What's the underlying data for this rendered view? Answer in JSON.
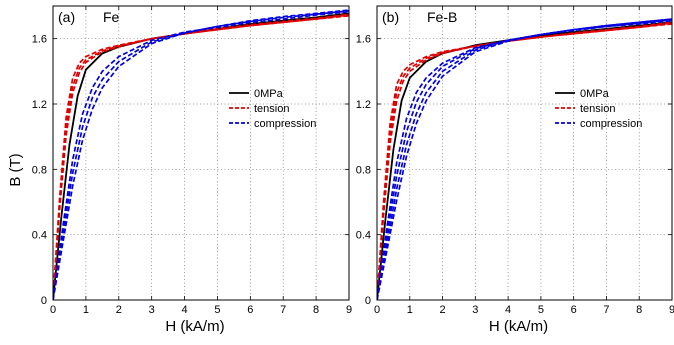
{
  "figure": {
    "ylabel": "B (T)"
  },
  "chart_data": [
    {
      "type": "line",
      "panel_label": "(a)",
      "material": "Fe",
      "xlabel": "H (kA/m)",
      "ylabel": "B (T)",
      "xlim": [
        0,
        9
      ],
      "ylim": [
        0,
        1.8
      ],
      "xticks": [
        0,
        1,
        2,
        3,
        4,
        5,
        6,
        7,
        8,
        9
      ],
      "yticks": [
        0,
        0.4,
        0.8,
        1.2,
        1.6
      ],
      "ytick_labels": [
        "0",
        "0.4",
        "0.8",
        "1.2",
        "1.6"
      ],
      "grid": true,
      "legend_position": "middle-right",
      "legend": [
        {
          "label": "0MPa",
          "color": "#000000",
          "dash": "solid"
        },
        {
          "label": "tension",
          "color": "#e00000",
          "dash": "dashed"
        },
        {
          "label": "compression",
          "color": "#0000e0",
          "dash": "dashed"
        }
      ],
      "series": [
        {
          "group": "0MPa",
          "color": "#000000",
          "dash": "solid",
          "x": [
            0,
            0.25,
            0.5,
            0.75,
            1.0,
            1.5,
            2.0,
            3.0,
            4.0,
            5.0,
            6.0,
            7.0,
            8.0,
            9.0
          ],
          "y": [
            0,
            0.5,
            0.95,
            1.25,
            1.41,
            1.51,
            1.55,
            1.6,
            1.63,
            1.66,
            1.69,
            1.71,
            1.73,
            1.755
          ]
        },
        {
          "group": "tension",
          "color": "#e00000",
          "dash": "dashed",
          "x": [
            0,
            0.2,
            0.4,
            0.6,
            0.8,
            1.0,
            1.5,
            2.0,
            3.0,
            4.0,
            5.0,
            6.0,
            7.0,
            8.0,
            9.0
          ],
          "y": [
            0,
            0.62,
            1.12,
            1.36,
            1.45,
            1.49,
            1.535,
            1.56,
            1.6,
            1.63,
            1.655,
            1.68,
            1.7,
            1.72,
            1.74
          ]
        },
        {
          "group": "tension",
          "color": "#e00000",
          "dash": "dashed",
          "x": [
            0,
            0.2,
            0.4,
            0.6,
            0.8,
            1.0,
            1.5,
            2.0,
            3.0,
            4.0,
            5.0,
            6.0,
            7.0,
            8.0,
            9.0
          ],
          "y": [
            0,
            0.58,
            1.06,
            1.31,
            1.42,
            1.47,
            1.525,
            1.555,
            1.6,
            1.63,
            1.655,
            1.68,
            1.7,
            1.72,
            1.745
          ]
        },
        {
          "group": "tension",
          "color": "#e00000",
          "dash": "dashed",
          "x": [
            0,
            0.2,
            0.4,
            0.6,
            0.8,
            1.0,
            1.5,
            2.0,
            3.0,
            4.0,
            5.0,
            6.0,
            7.0,
            8.0,
            9.0
          ],
          "y": [
            0,
            0.55,
            1.01,
            1.27,
            1.39,
            1.455,
            1.52,
            1.55,
            1.6,
            1.63,
            1.66,
            1.685,
            1.705,
            1.725,
            1.75
          ]
        },
        {
          "group": "compression",
          "color": "#0000e0",
          "dash": "dashed",
          "x": [
            0,
            0.3,
            0.6,
            0.9,
            1.2,
            1.5,
            2.0,
            3.0,
            4.0,
            5.0,
            6.0,
            7.0,
            8.0,
            9.0
          ],
          "y": [
            0,
            0.45,
            0.86,
            1.14,
            1.3,
            1.4,
            1.49,
            1.59,
            1.64,
            1.67,
            1.7,
            1.72,
            1.745,
            1.765
          ]
        },
        {
          "group": "compression",
          "color": "#0000e0",
          "dash": "dashed",
          "x": [
            0,
            0.3,
            0.6,
            0.9,
            1.2,
            1.5,
            2.0,
            3.0,
            4.0,
            5.0,
            6.0,
            7.0,
            8.0,
            9.0
          ],
          "y": [
            0,
            0.4,
            0.78,
            1.06,
            1.24,
            1.35,
            1.46,
            1.58,
            1.635,
            1.675,
            1.705,
            1.73,
            1.75,
            1.77
          ]
        },
        {
          "group": "compression",
          "color": "#0000e0",
          "dash": "dashed",
          "x": [
            0,
            0.3,
            0.6,
            0.9,
            1.2,
            1.5,
            2.0,
            3.0,
            4.0,
            5.0,
            6.0,
            7.0,
            8.0,
            9.0
          ],
          "y": [
            0,
            0.35,
            0.7,
            0.98,
            1.17,
            1.3,
            1.43,
            1.57,
            1.635,
            1.675,
            1.71,
            1.735,
            1.755,
            1.775
          ]
        }
      ]
    },
    {
      "type": "line",
      "panel_label": "(b)",
      "material": "Fe-B",
      "xlabel": "H (kA/m)",
      "ylabel": "",
      "xlim": [
        0,
        9
      ],
      "ylim": [
        0,
        1.8
      ],
      "xticks": [
        0,
        1,
        2,
        3,
        4,
        5,
        6,
        7,
        8,
        9
      ],
      "yticks": [
        0,
        0.4,
        0.8,
        1.2,
        1.6
      ],
      "ytick_labels": [
        "0",
        "0.4",
        "0.8",
        "1.2",
        "1.6"
      ],
      "grid": true,
      "legend_position": "middle-right",
      "legend": [
        {
          "label": "0MPa",
          "color": "#000000",
          "dash": "solid"
        },
        {
          "label": "tension",
          "color": "#e00000",
          "dash": "dashed"
        },
        {
          "label": "compression",
          "color": "#0000e0",
          "dash": "dashed"
        }
      ],
      "series": [
        {
          "group": "0MPa",
          "color": "#000000",
          "dash": "solid",
          "x": [
            0,
            0.25,
            0.5,
            0.75,
            1.0,
            1.5,
            2.0,
            3.0,
            4.0,
            5.0,
            6.0,
            7.0,
            8.0,
            9.0
          ],
          "y": [
            0,
            0.48,
            0.92,
            1.22,
            1.36,
            1.46,
            1.51,
            1.56,
            1.59,
            1.62,
            1.64,
            1.66,
            1.68,
            1.7
          ]
        },
        {
          "group": "tension",
          "color": "#e00000",
          "dash": "dashed",
          "x": [
            0,
            0.2,
            0.4,
            0.6,
            0.8,
            1.0,
            1.5,
            2.0,
            3.0,
            4.0,
            5.0,
            6.0,
            7.0,
            8.0,
            9.0
          ],
          "y": [
            0,
            0.6,
            1.08,
            1.32,
            1.4,
            1.44,
            1.49,
            1.52,
            1.555,
            1.585,
            1.61,
            1.63,
            1.65,
            1.67,
            1.69
          ]
        },
        {
          "group": "tension",
          "color": "#e00000",
          "dash": "dashed",
          "x": [
            0,
            0.2,
            0.4,
            0.6,
            0.8,
            1.0,
            1.5,
            2.0,
            3.0,
            4.0,
            5.0,
            6.0,
            7.0,
            8.0,
            9.0
          ],
          "y": [
            0,
            0.56,
            1.02,
            1.27,
            1.37,
            1.42,
            1.48,
            1.515,
            1.555,
            1.585,
            1.61,
            1.63,
            1.65,
            1.67,
            1.695
          ]
        },
        {
          "group": "tension",
          "color": "#e00000",
          "dash": "dashed",
          "x": [
            0,
            0.2,
            0.4,
            0.6,
            0.8,
            1.0,
            1.5,
            2.0,
            3.0,
            4.0,
            5.0,
            6.0,
            7.0,
            8.0,
            9.0
          ],
          "y": [
            0,
            0.52,
            0.96,
            1.22,
            1.34,
            1.4,
            1.47,
            1.51,
            1.555,
            1.585,
            1.61,
            1.635,
            1.655,
            1.675,
            1.7
          ]
        },
        {
          "group": "compression",
          "color": "#0000e0",
          "dash": "dashed",
          "x": [
            0,
            0.3,
            0.6,
            0.9,
            1.2,
            1.5,
            2.0,
            3.0,
            4.0,
            5.0,
            6.0,
            7.0,
            8.0,
            9.0
          ],
          "y": [
            0,
            0.44,
            0.84,
            1.11,
            1.27,
            1.36,
            1.45,
            1.545,
            1.59,
            1.625,
            1.65,
            1.675,
            1.69,
            1.71
          ]
        },
        {
          "group": "compression",
          "color": "#0000e0",
          "dash": "dashed",
          "x": [
            0,
            0.3,
            0.6,
            0.9,
            1.2,
            1.5,
            2.0,
            3.0,
            4.0,
            5.0,
            6.0,
            7.0,
            8.0,
            9.0
          ],
          "y": [
            0,
            0.39,
            0.76,
            1.03,
            1.21,
            1.32,
            1.43,
            1.54,
            1.59,
            1.625,
            1.655,
            1.675,
            1.695,
            1.715
          ]
        },
        {
          "group": "compression",
          "color": "#0000e0",
          "dash": "dashed",
          "x": [
            0,
            0.3,
            0.6,
            0.9,
            1.2,
            1.5,
            2.0,
            3.0,
            4.0,
            5.0,
            6.0,
            7.0,
            8.0,
            9.0
          ],
          "y": [
            0,
            0.34,
            0.68,
            0.95,
            1.14,
            1.27,
            1.4,
            1.53,
            1.59,
            1.625,
            1.655,
            1.68,
            1.7,
            1.72
          ]
        },
        {
          "group": "compression",
          "color": "#0000e0",
          "dash": "dashed",
          "x": [
            0,
            0.3,
            0.6,
            0.9,
            1.2,
            1.5,
            2.0,
            3.0,
            4.0,
            5.0,
            6.0,
            7.0,
            8.0,
            9.0
          ],
          "y": [
            0,
            0.3,
            0.61,
            0.88,
            1.08,
            1.22,
            1.37,
            1.52,
            1.585,
            1.625,
            1.655,
            1.68,
            1.7,
            1.72
          ]
        }
      ]
    }
  ]
}
